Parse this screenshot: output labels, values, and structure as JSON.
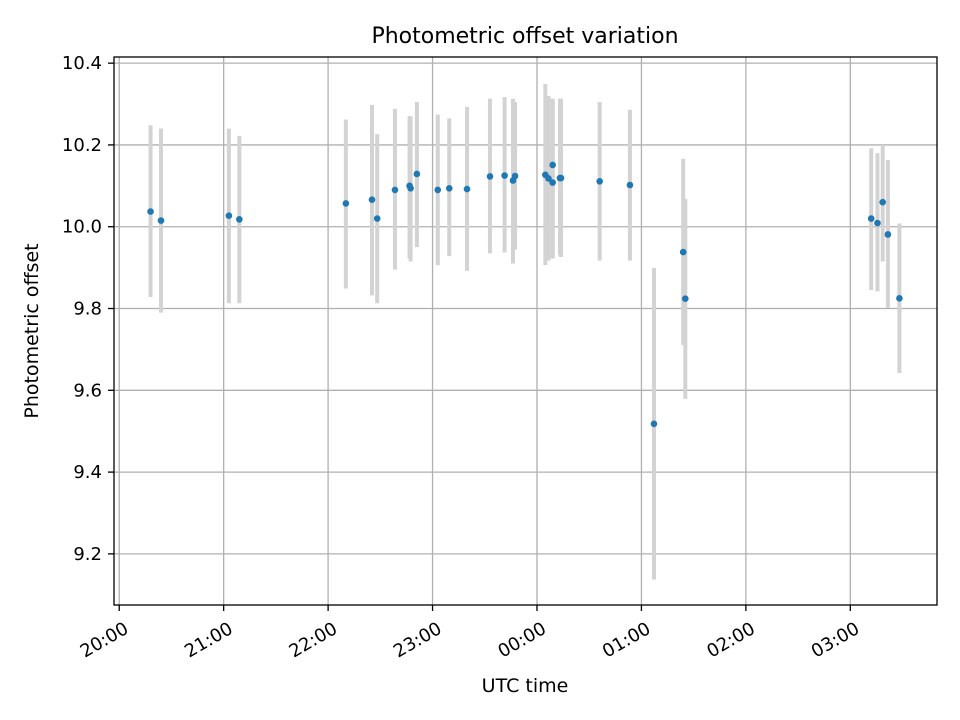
{
  "chart_data": {
    "type": "scatter",
    "title": "Photometric offset variation",
    "xlabel": "UTC time",
    "ylabel": "Photometric offset",
    "xlim": [
      -0.05,
      7.83
    ],
    "ylim": [
      9.075,
      10.415
    ],
    "grid": true,
    "x_unit": "hours after 20:00 UTC",
    "x_ticks": [
      {
        "value": 0,
        "label": "20:00"
      },
      {
        "value": 1,
        "label": "21:00"
      },
      {
        "value": 2,
        "label": "22:00"
      },
      {
        "value": 3,
        "label": "23:00"
      },
      {
        "value": 4,
        "label": "00:00"
      },
      {
        "value": 5,
        "label": "01:00"
      },
      {
        "value": 6,
        "label": "02:00"
      },
      {
        "value": 7,
        "label": "03:00"
      }
    ],
    "y_ticks": [
      {
        "value": 9.2,
        "label": "9.2"
      },
      {
        "value": 9.4,
        "label": "9.4"
      },
      {
        "value": 9.6,
        "label": "9.6"
      },
      {
        "value": 9.8,
        "label": "9.8"
      },
      {
        "value": 10.0,
        "label": "10.0"
      },
      {
        "value": 10.2,
        "label": "10.2"
      },
      {
        "value": 10.4,
        "label": "10.4"
      }
    ],
    "colors": {
      "point": "#1f77b4",
      "errorbar": "#d3d3d3",
      "grid": "#b0b0b0"
    },
    "series": [
      {
        "name": "Photometric offset",
        "points": [
          {
            "x": 0.3,
            "y": 10.037,
            "lo": 9.828,
            "hi": 10.248
          },
          {
            "x": 0.4,
            "y": 10.015,
            "lo": 9.79,
            "hi": 10.24
          },
          {
            "x": 1.05,
            "y": 10.027,
            "lo": 9.813,
            "hi": 10.24
          },
          {
            "x": 1.15,
            "y": 10.018,
            "lo": 9.813,
            "hi": 10.222
          },
          {
            "x": 2.17,
            "y": 10.057,
            "lo": 9.849,
            "hi": 10.262
          },
          {
            "x": 2.42,
            "y": 10.066,
            "lo": 9.832,
            "hi": 10.298
          },
          {
            "x": 2.47,
            "y": 10.02,
            "lo": 9.813,
            "hi": 10.226
          },
          {
            "x": 2.64,
            "y": 10.09,
            "lo": 9.895,
            "hi": 10.288
          },
          {
            "x": 2.78,
            "y": 10.1,
            "lo": 9.922,
            "hi": 10.27
          },
          {
            "x": 2.79,
            "y": 10.094,
            "lo": 9.915,
            "hi": 10.27
          },
          {
            "x": 2.85,
            "y": 10.129,
            "lo": 9.95,
            "hi": 10.305
          },
          {
            "x": 3.05,
            "y": 10.09,
            "lo": 9.906,
            "hi": 10.274
          },
          {
            "x": 3.16,
            "y": 10.094,
            "lo": 9.928,
            "hi": 10.265
          },
          {
            "x": 3.33,
            "y": 10.092,
            "lo": 9.892,
            "hi": 10.293
          },
          {
            "x": 3.55,
            "y": 10.123,
            "lo": 9.935,
            "hi": 10.313
          },
          {
            "x": 3.69,
            "y": 10.125,
            "lo": 9.937,
            "hi": 10.317
          },
          {
            "x": 3.77,
            "y": 10.113,
            "lo": 9.91,
            "hi": 10.313
          },
          {
            "x": 3.79,
            "y": 10.124,
            "lo": 9.944,
            "hi": 10.305
          },
          {
            "x": 4.08,
            "y": 10.127,
            "lo": 9.906,
            "hi": 10.349
          },
          {
            "x": 4.11,
            "y": 10.118,
            "lo": 9.917,
            "hi": 10.32
          },
          {
            "x": 4.15,
            "y": 10.151,
            "lo": 9.922,
            "hi": 10.313
          },
          {
            "x": 4.15,
            "y": 10.108,
            "lo": 9.926,
            "hi": 10.31
          },
          {
            "x": 4.22,
            "y": 10.119,
            "lo": 9.93,
            "hi": 10.313
          },
          {
            "x": 4.23,
            "y": 10.119,
            "lo": 9.926,
            "hi": 10.313
          },
          {
            "x": 4.6,
            "y": 10.111,
            "lo": 9.917,
            "hi": 10.305
          },
          {
            "x": 4.89,
            "y": 10.102,
            "lo": 9.917,
            "hi": 10.286
          },
          {
            "x": 5.12,
            "y": 9.518,
            "lo": 9.137,
            "hi": 9.899
          },
          {
            "x": 5.4,
            "y": 9.938,
            "lo": 9.711,
            "hi": 10.166
          },
          {
            "x": 5.42,
            "y": 9.824,
            "lo": 9.579,
            "hi": 10.068
          },
          {
            "x": 7.2,
            "y": 10.02,
            "lo": 9.845,
            "hi": 10.192
          },
          {
            "x": 7.26,
            "y": 10.009,
            "lo": 9.842,
            "hi": 10.18
          },
          {
            "x": 7.31,
            "y": 10.06,
            "lo": 9.915,
            "hi": 10.2
          },
          {
            "x": 7.36,
            "y": 9.981,
            "lo": 9.802,
            "hi": 10.163
          },
          {
            "x": 7.47,
            "y": 9.825,
            "lo": 9.642,
            "hi": 10.008
          }
        ]
      }
    ]
  }
}
